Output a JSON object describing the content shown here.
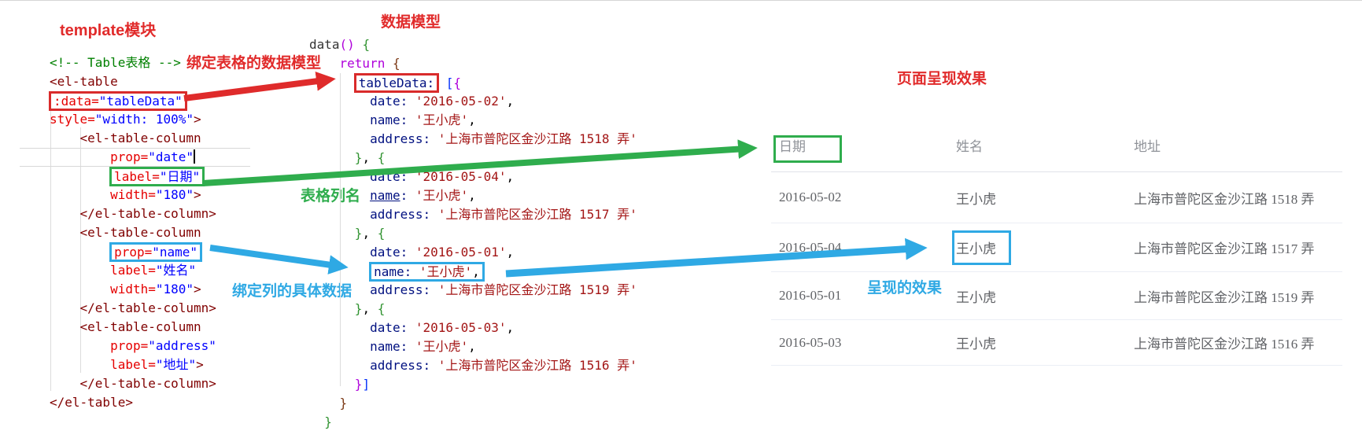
{
  "labels": {
    "template_module": "template模块",
    "data_model": "数据模型",
    "bind_table_model": "绑定表格的数据模型",
    "table_column_name": "表格列名",
    "bind_column_data": "绑定列的具体数据",
    "render_effect": "呈现的效果",
    "page_render_title": "页面呈现效果"
  },
  "colors": {
    "annotation_red": "#e12b2b",
    "annotation_green": "#2fad4d",
    "annotation_blue": "#2fa9e4",
    "code_tag": "#800000",
    "code_attr": "#e50000",
    "code_attr_value": "#0000ff",
    "code_comment": "#008000",
    "code_keyword": "#af00db",
    "code_property": "#001080",
    "code_string": "#a31515",
    "table_header_text": "#909399",
    "table_cell_text": "#606266"
  },
  "left_code": {
    "lines": [
      [
        {
          "t": "<!-- Table表格 -->",
          "c": "cmt"
        }
      ],
      [
        {
          "t": "<el-table",
          "c": "tag"
        }
      ],
      [
        {
          "box": "red",
          "tokens": [
            {
              "t": ":data=",
              "c": "attr"
            },
            {
              "t": "\"tableData\"",
              "c": "str"
            }
          ]
        }
      ],
      [
        {
          "t": "style=",
          "c": "attr"
        },
        {
          "t": "\"width: 100%\"",
          "c": "str"
        },
        {
          "t": ">",
          "c": "tag"
        }
      ],
      [
        {
          "t": "    ",
          "c": "pln"
        },
        {
          "t": "<el-table-column",
          "c": "tag"
        }
      ],
      [
        {
          "t": "        ",
          "c": "pln"
        },
        {
          "t": "prop=",
          "c": "attr"
        },
        {
          "t": "\"date\"",
          "c": "str"
        },
        {
          "cursor": true
        }
      ],
      [
        {
          "t": "        ",
          "c": "pln"
        },
        {
          "box": "green",
          "tokens": [
            {
              "t": "label=",
              "c": "attr"
            },
            {
              "t": "\"日期\"",
              "c": "str"
            }
          ]
        }
      ],
      [
        {
          "t": "        ",
          "c": "pln"
        },
        {
          "t": "width=",
          "c": "attr"
        },
        {
          "t": "\"180\"",
          "c": "str"
        },
        {
          "t": ">",
          "c": "tag"
        }
      ],
      [
        {
          "t": "    ",
          "c": "pln"
        },
        {
          "t": "</el-table-column>",
          "c": "tag"
        }
      ],
      [
        {
          "t": "    ",
          "c": "pln"
        },
        {
          "t": "<el-table-column",
          "c": "tag"
        }
      ],
      [
        {
          "t": "        ",
          "c": "pln"
        },
        {
          "box": "blue",
          "tokens": [
            {
              "t": "prop=",
              "c": "attr"
            },
            {
              "t": "\"name\"",
              "c": "str"
            }
          ]
        }
      ],
      [
        {
          "t": "        ",
          "c": "pln"
        },
        {
          "t": "label=",
          "c": "attr"
        },
        {
          "t": "\"姓名\"",
          "c": "str"
        }
      ],
      [
        {
          "t": "        ",
          "c": "pln"
        },
        {
          "t": "width=",
          "c": "attr"
        },
        {
          "t": "\"180\"",
          "c": "str"
        },
        {
          "t": ">",
          "c": "tag"
        }
      ],
      [
        {
          "t": "    ",
          "c": "pln"
        },
        {
          "t": "</el-table-column>",
          "c": "tag"
        }
      ],
      [
        {
          "t": "    ",
          "c": "pln"
        },
        {
          "t": "<el-table-column",
          "c": "tag"
        }
      ],
      [
        {
          "t": "        ",
          "c": "pln"
        },
        {
          "t": "prop=",
          "c": "attr"
        },
        {
          "t": "\"address\"",
          "c": "str"
        }
      ],
      [
        {
          "t": "        ",
          "c": "pln"
        },
        {
          "t": "label=",
          "c": "attr"
        },
        {
          "t": "\"地址\"",
          "c": "str"
        },
        {
          "t": ">",
          "c": "tag"
        }
      ],
      [
        {
          "t": "    ",
          "c": "pln"
        },
        {
          "t": "</el-table-column>",
          "c": "tag"
        }
      ],
      [
        {
          "t": "</el-table>",
          "c": "tag"
        }
      ]
    ]
  },
  "data_code": {
    "lines": [
      [
        {
          "t": "data",
          "c": "fn"
        },
        {
          "t": "()",
          "c": "kw"
        },
        {
          "t": " ",
          "c": "pln"
        },
        {
          "t": "{",
          "c": "brk-g"
        }
      ],
      [
        {
          "t": "    ",
          "c": "pln"
        },
        {
          "t": "return",
          "c": "kw"
        },
        {
          "t": " ",
          "c": "pln"
        },
        {
          "t": "{",
          "c": "brk-br"
        }
      ],
      [
        {
          "t": "      ",
          "c": "pln"
        },
        {
          "box": "red",
          "tokens": [
            {
              "t": "tableData:",
              "c": "var"
            }
          ]
        },
        {
          "t": " ",
          "c": "pln"
        },
        {
          "t": "[",
          "c": "brk-b"
        },
        {
          "t": "{",
          "c": "brk-p"
        }
      ],
      [
        {
          "t": "        ",
          "c": "pln"
        },
        {
          "t": "date:",
          "c": "var"
        },
        {
          "t": " ",
          "c": "pln"
        },
        {
          "t": "'2016-05-02'",
          "c": "jstr"
        },
        {
          "t": ",",
          "c": "pln"
        }
      ],
      [
        {
          "t": "        ",
          "c": "pln"
        },
        {
          "t": "name:",
          "c": "var"
        },
        {
          "t": " ",
          "c": "pln"
        },
        {
          "t": "'王小虎'",
          "c": "jstr"
        },
        {
          "t": ",",
          "c": "pln"
        }
      ],
      [
        {
          "t": "        ",
          "c": "pln"
        },
        {
          "t": "address:",
          "c": "var"
        },
        {
          "t": " ",
          "c": "pln"
        },
        {
          "t": "'上海市普陀区金沙江路 1518 弄'",
          "c": "jstr"
        }
      ],
      [
        {
          "t": "      ",
          "c": "pln"
        },
        {
          "t": "}",
          "c": "brk-g"
        },
        {
          "t": ",",
          "c": "pln"
        },
        {
          "t": " ",
          "c": "pln"
        },
        {
          "t": "{",
          "c": "brk-g"
        }
      ],
      [
        {
          "t": "        ",
          "c": "pln"
        },
        {
          "t": "date:",
          "c": "var"
        },
        {
          "t": " ",
          "c": "pln"
        },
        {
          "t": "'2016-05-04'",
          "c": "jstr"
        },
        {
          "t": ",",
          "c": "pln"
        }
      ],
      [
        {
          "t": "        ",
          "c": "pln"
        },
        {
          "t": "name",
          "c": "var",
          "u": true
        },
        {
          "t": ":",
          "c": "var"
        },
        {
          "t": " ",
          "c": "pln"
        },
        {
          "t": "'王小虎'",
          "c": "jstr"
        },
        {
          "t": ",",
          "c": "pln"
        }
      ],
      [
        {
          "t": "        ",
          "c": "pln"
        },
        {
          "t": "address:",
          "c": "var"
        },
        {
          "t": " ",
          "c": "pln"
        },
        {
          "t": "'上海市普陀区金沙江路 1517 弄'",
          "c": "jstr"
        }
      ],
      [
        {
          "t": "      ",
          "c": "pln"
        },
        {
          "t": "}",
          "c": "brk-g"
        },
        {
          "t": ",",
          "c": "pln"
        },
        {
          "t": " ",
          "c": "pln"
        },
        {
          "t": "{",
          "c": "brk-g"
        }
      ],
      [
        {
          "t": "        ",
          "c": "pln"
        },
        {
          "t": "date:",
          "c": "var"
        },
        {
          "t": " ",
          "c": "pln"
        },
        {
          "t": "'2016-05-01'",
          "c": "jstr"
        },
        {
          "t": ",",
          "c": "pln"
        }
      ],
      [
        {
          "t": "        ",
          "c": "pln"
        },
        {
          "box": "blue",
          "tokens": [
            {
              "t": "name:",
              "c": "var"
            },
            {
              "t": " ",
              "c": "pln"
            },
            {
              "t": "'王小虎'",
              "c": "jstr"
            },
            {
              "t": ",",
              "c": "pln"
            }
          ]
        }
      ],
      [
        {
          "t": "        ",
          "c": "pln"
        },
        {
          "t": "address:",
          "c": "var"
        },
        {
          "t": " ",
          "c": "pln"
        },
        {
          "t": "'上海市普陀区金沙江路 1519 弄'",
          "c": "jstr"
        }
      ],
      [
        {
          "t": "      ",
          "c": "pln"
        },
        {
          "t": "}",
          "c": "brk-g"
        },
        {
          "t": ",",
          "c": "pln"
        },
        {
          "t": " ",
          "c": "pln"
        },
        {
          "t": "{",
          "c": "brk-g"
        }
      ],
      [
        {
          "t": "        ",
          "c": "pln"
        },
        {
          "t": "date:",
          "c": "var"
        },
        {
          "t": " ",
          "c": "pln"
        },
        {
          "t": "'2016-05-03'",
          "c": "jstr"
        },
        {
          "t": ",",
          "c": "pln"
        }
      ],
      [
        {
          "t": "        ",
          "c": "pln"
        },
        {
          "t": "name:",
          "c": "var"
        },
        {
          "t": " ",
          "c": "pln"
        },
        {
          "t": "'王小虎'",
          "c": "jstr"
        },
        {
          "t": ",",
          "c": "pln"
        }
      ],
      [
        {
          "t": "        ",
          "c": "pln"
        },
        {
          "t": "address:",
          "c": "var"
        },
        {
          "t": " ",
          "c": "pln"
        },
        {
          "t": "'上海市普陀区金沙江路 1516 弄'",
          "c": "jstr"
        }
      ],
      [
        {
          "t": "      ",
          "c": "pln"
        },
        {
          "t": "}",
          "c": "brk-p"
        },
        {
          "t": "]",
          "c": "brk-b"
        }
      ],
      [
        {
          "t": "    ",
          "c": "pln"
        },
        {
          "t": "}",
          "c": "brk-br"
        }
      ],
      [
        {
          "t": "  ",
          "c": "pln"
        },
        {
          "t": "}",
          "c": "brk-g"
        }
      ]
    ]
  },
  "table": {
    "headers": [
      "日期",
      "姓名",
      "地址"
    ],
    "rows": [
      [
        "2016-05-02",
        "王小虎",
        "上海市普陀区金沙江路 1518 弄"
      ],
      [
        "2016-05-04",
        "王小虎",
        "上海市普陀区金沙江路 1517 弄"
      ],
      [
        "2016-05-01",
        "王小虎",
        "上海市普陀区金沙江路 1519 弄"
      ],
      [
        "2016-05-03",
        "王小虎",
        "上海市普陀区金沙江路 1516 弄"
      ]
    ],
    "header_highlight": {
      "col": 0,
      "color": "green"
    },
    "cell_highlight": {
      "row": 1,
      "col": 1,
      "color": "blue"
    }
  }
}
